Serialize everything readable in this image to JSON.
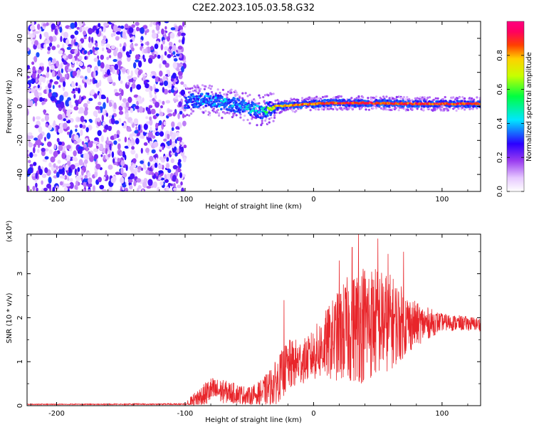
{
  "title": "C2E2.2023.105.03.58.G32",
  "chart_data": [
    {
      "type": "heatmap",
      "xlabel": "Height of straight line (km)",
      "ylabel": "Frequency (Hz)",
      "xlim": [
        -223,
        130
      ],
      "ylim": [
        -50,
        50
      ],
      "xticks": [
        -200,
        -100,
        0,
        100
      ],
      "yticks": [
        -40,
        -20,
        0,
        20,
        40
      ],
      "colorbar": {
        "label": "Normalized spectral amplitude",
        "range": [
          0,
          1
        ],
        "ticks": [
          "0.0",
          "0.2",
          "0.4",
          "0.6",
          "0.8"
        ]
      },
      "regions": [
        {
          "x_range": [
            -223,
            -100
          ],
          "description_level": "scattered low-amplitude noise across all frequencies",
          "amplitude": 0.15
        },
        {
          "x_range": [
            -100,
            -35
          ],
          "frequency_center_hz": [
            3,
            -5
          ],
          "amplitude": 0.4
        },
        {
          "x_range": [
            -35,
            130
          ],
          "frequency_center_hz": 1.5,
          "amplitude": 0.95
        }
      ],
      "ridge": [
        {
          "x": -100,
          "f": 3,
          "a": 0.35
        },
        {
          "x": -85,
          "f": 4,
          "a": 0.45
        },
        {
          "x": -70,
          "f": 2,
          "a": 0.45
        },
        {
          "x": -55,
          "f": 0,
          "a": 0.45
        },
        {
          "x": -40,
          "f": -3,
          "a": 0.5
        },
        {
          "x": -30,
          "f": 0,
          "a": 0.85
        },
        {
          "x": -10,
          "f": 1,
          "a": 0.9
        },
        {
          "x": 10,
          "f": 2,
          "a": 0.95
        },
        {
          "x": 40,
          "f": 2,
          "a": 0.95
        },
        {
          "x": 80,
          "f": 1.5,
          "a": 0.95
        },
        {
          "x": 130,
          "f": 1.5,
          "a": 0.95
        }
      ]
    },
    {
      "type": "line",
      "xlabel": "Height of straight line (km)",
      "ylabel": "SNR (10 * v/v)",
      "yscale_label": "(x10⁴)",
      "xlim": [
        -223,
        130
      ],
      "ylim": [
        0,
        3.9
      ],
      "xticks": [
        -200,
        -100,
        0,
        100
      ],
      "yticks": [
        0,
        1,
        2,
        3
      ],
      "series": [
        {
          "color": "#e8252a",
          "envelope": [
            {
              "x": -223,
              "base": 0.02,
              "spread": 0.02
            },
            {
              "x": -100,
              "base": 0.03,
              "spread": 0.02
            },
            {
              "x": -90,
              "base": 0.15,
              "spread": 0.25
            },
            {
              "x": -80,
              "base": 0.35,
              "spread": 0.3
            },
            {
              "x": -65,
              "base": 0.3,
              "spread": 0.25
            },
            {
              "x": -50,
              "base": 0.22,
              "spread": 0.2
            },
            {
              "x": -40,
              "base": 0.3,
              "spread": 0.3
            },
            {
              "x": -30,
              "base": 0.5,
              "spread": 0.5
            },
            {
              "x": -20,
              "base": 0.9,
              "spread": 0.6
            },
            {
              "x": -5,
              "base": 1.05,
              "spread": 0.5
            },
            {
              "x": 10,
              "base": 1.4,
              "spread": 0.8
            },
            {
              "x": 25,
              "base": 1.7,
              "spread": 1.2
            },
            {
              "x": 40,
              "base": 1.9,
              "spread": 1.4
            },
            {
              "x": 60,
              "base": 1.9,
              "spread": 1.1
            },
            {
              "x": 80,
              "base": 1.85,
              "spread": 0.5
            },
            {
              "x": 100,
              "base": 1.9,
              "spread": 0.2
            },
            {
              "x": 130,
              "base": 1.85,
              "spread": 0.15
            }
          ],
          "peaks": [
            {
              "x": -23,
              "y": 2.4
            },
            {
              "x": 20,
              "y": 3.3
            },
            {
              "x": 30,
              "y": 3.6
            },
            {
              "x": 35,
              "y": 3.9
            },
            {
              "x": 50,
              "y": 3.8
            },
            {
              "x": 58,
              "y": 3.45
            },
            {
              "x": 70,
              "y": 3.5
            }
          ]
        }
      ]
    }
  ]
}
